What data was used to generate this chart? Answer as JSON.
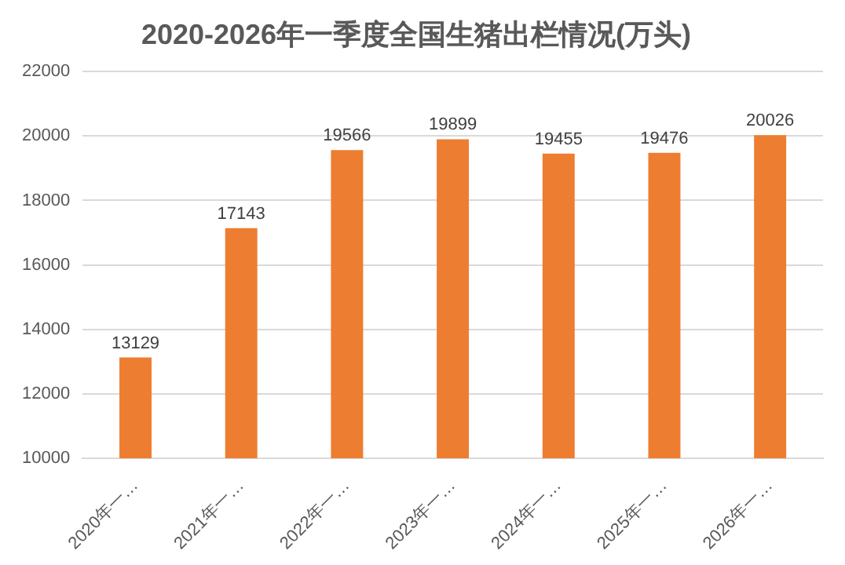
{
  "chart_data": {
    "type": "bar",
    "title": "2020-2026年一季度全国生猪出栏情况(万头)",
    "categories": [
      "2020年一…",
      "2021年一…",
      "2022年一…",
      "2023年一…",
      "2024年一…",
      "2025年一…",
      "2026年一…"
    ],
    "values": [
      13129,
      17143,
      19566,
      19899,
      19455,
      19476,
      20026
    ],
    "color": "#ed7d31",
    "ylim": [
      10000,
      22000
    ],
    "yticks": [
      10000,
      12000,
      14000,
      16000,
      18000,
      20000,
      22000
    ],
    "grid": "y",
    "data_labels": true,
    "legend": false
  }
}
